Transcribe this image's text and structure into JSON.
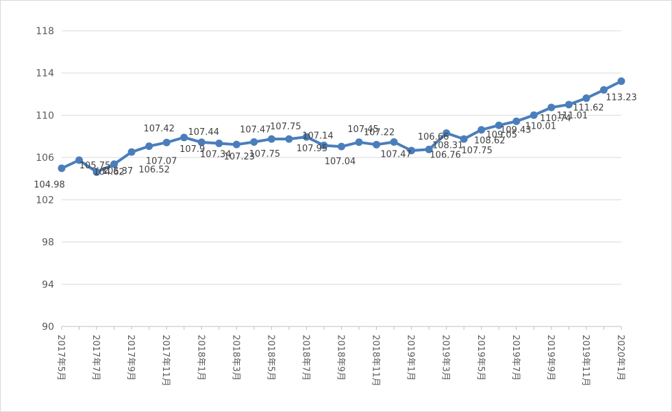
{
  "chart_data": {
    "type": "line",
    "title": "",
    "xlabel": "",
    "ylabel": "",
    "ylim": [
      90,
      118
    ],
    "yticks": [
      90,
      94,
      98,
      102,
      106,
      110,
      114,
      118
    ],
    "grid": true,
    "legend": "none",
    "series_color": "#4a7ebb",
    "x": [
      "2017年5月",
      "2017年6月",
      "2017年7月",
      "2017年8月",
      "2017年9月",
      "2017年10月",
      "2017年11月",
      "2017年12月",
      "2018年1月",
      "2018年2月",
      "2018年3月",
      "2018年4月",
      "2018年5月",
      "2018年6月",
      "2018年7月",
      "2018年8月",
      "2018年9月",
      "2018年10月",
      "2018年11月",
      "2018年12月",
      "2019年1月",
      "2019年2月",
      "2019年3月",
      "2019年4月",
      "2019年5月",
      "2019年6月",
      "2019年7月",
      "2019年8月",
      "2019年9月",
      "2019年10月",
      "2019年11月",
      "2019年12月",
      "2020年1月"
    ],
    "x_tick_labels": [
      {
        "index": 0,
        "text": "2017年5月"
      },
      {
        "index": 2,
        "text": "2017年7月"
      },
      {
        "index": 4,
        "text": "2017年9月"
      },
      {
        "index": 6,
        "text": "2017年11月"
      },
      {
        "index": 8,
        "text": "2018年1月"
      },
      {
        "index": 10,
        "text": "2018年3月"
      },
      {
        "index": 12,
        "text": "2018年5月"
      },
      {
        "index": 14,
        "text": "2018年7月"
      },
      {
        "index": 16,
        "text": "2018年9月"
      },
      {
        "index": 18,
        "text": "2018年11月"
      },
      {
        "index": 20,
        "text": "2019年1月"
      },
      {
        "index": 22,
        "text": "2019年3月"
      },
      {
        "index": 24,
        "text": "2019年5月"
      },
      {
        "index": 26,
        "text": "2019年7月"
      },
      {
        "index": 28,
        "text": "2019年9月"
      },
      {
        "index": 30,
        "text": "2019年11月"
      },
      {
        "index": 32,
        "text": "2020年1月"
      }
    ],
    "values": [
      104.98,
      105.75,
      104.62,
      105.37,
      106.52,
      107.07,
      107.42,
      107.9,
      107.44,
      107.34,
      107.23,
      107.47,
      107.75,
      107.75,
      107.95,
      107.14,
      107.04,
      107.45,
      107.22,
      107.47,
      106.66,
      106.76,
      108.31,
      107.75,
      108.62,
      109.05,
      109.43,
      110.01,
      110.74,
      111.01,
      111.62,
      112.4,
      113.23
    ],
    "data_labels": [
      "104.98",
      "105.75",
      "104.62",
      "105.37",
      "106.52",
      "107.07",
      "107.42",
      "107.9",
      "107.44",
      "107.34",
      "107.23",
      "107.47",
      "107.75",
      "107.75",
      "107.95",
      "107.14",
      "107.04",
      "107.45",
      "107.22",
      "107.47",
      "106.66",
      "106.76",
      "108.31",
      "107.75",
      "108.62",
      "109.05",
      "109.43",
      "110.01",
      "110.74",
      "111.01",
      "111.62",
      "",
      "113.23"
    ]
  }
}
